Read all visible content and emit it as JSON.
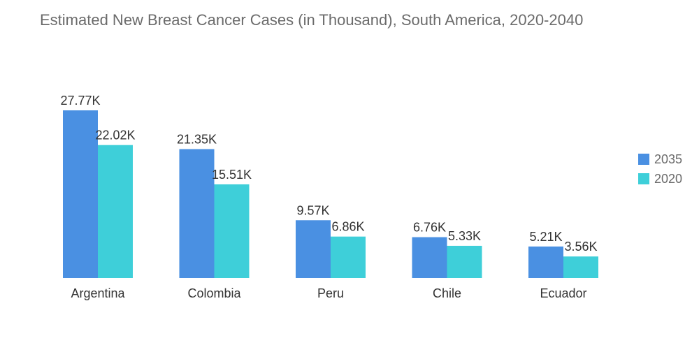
{
  "chart_data": {
    "type": "bar",
    "title": "Estimated New Breast Cancer Cases (in Thousand), South America, 2020-2040",
    "categories": [
      "Argentina",
      "Colombia",
      "Peru",
      "Chile",
      "Ecuador"
    ],
    "series": [
      {
        "name": "2035",
        "color": "#4a90e2",
        "values": [
          27.77,
          21.35,
          9.57,
          6.76,
          5.21
        ],
        "labels": [
          "27.77K",
          "21.35K",
          "9.57K",
          "6.76K",
          "5.21K"
        ]
      },
      {
        "name": "2020",
        "color": "#3ecfd9",
        "values": [
          22.02,
          15.51,
          6.86,
          5.33,
          3.56
        ],
        "labels": [
          "22.02K",
          "15.51K",
          "6.86K",
          "5.33K",
          "3.56K"
        ]
      }
    ],
    "ylim": [
      0,
      27.77
    ],
    "grid": false,
    "legend_position": "right"
  }
}
